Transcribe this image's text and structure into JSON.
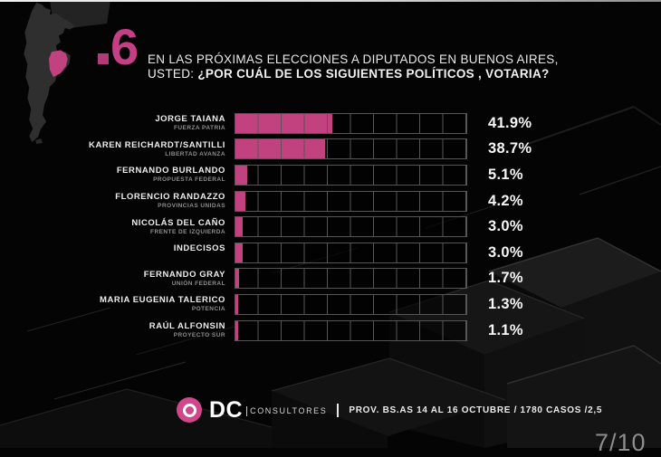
{
  "slide": {
    "question_number": "6",
    "title_line1": "EN LAS PRÓXIMAS ELECCIONES A DIPUTADOS EN BUENOS AIRES,",
    "title_line2_prefix": "USTED: ",
    "title_line2_bold": "¿POR CUÁL DE LOS SIGUIENTES POLÍTICOS , VOTARIA?",
    "page_number": "7/10"
  },
  "chart_data": {
    "type": "bar",
    "orientation": "horizontal",
    "value_axis": {
      "min": 0,
      "max": 100,
      "gridline_step": 10,
      "unit": "%"
    },
    "bar_color": "#c2417f",
    "legend": "none",
    "rows": [
      {
        "name": "JORGE TAIANA",
        "party": "FUERZA PATRIA",
        "value": 41.9,
        "label": "41.9%"
      },
      {
        "name": "KAREN REICHARDT/SANTILLI",
        "party": "LIBERTAD AVANZA",
        "value": 38.7,
        "label": "38.7%"
      },
      {
        "name": "FERNANDO BURLANDO",
        "party": "PROPUESTA FEDERAL",
        "value": 5.1,
        "label": "5.1%"
      },
      {
        "name": "FLORENCIO RANDAZZO",
        "party": "PROVINCIAS UNIDAS",
        "value": 4.2,
        "label": "4.2%"
      },
      {
        "name": "NICOLÁS DEL CAÑO",
        "party": "FRENTE DE IZQUIERDA",
        "value": 3.0,
        "label": "3.0%"
      },
      {
        "name": "INDECISOS",
        "party": "",
        "value": 3.0,
        "label": "3.0%"
      },
      {
        "name": "FERNANDO GRAY",
        "party": "UNIÓN FEDERAL",
        "value": 1.7,
        "label": "1.7%"
      },
      {
        "name": "MARIA EUGENIA TALERICO",
        "party": "POTENCIA",
        "value": 1.3,
        "label": "1.3%"
      },
      {
        "name": "RAÚL ALFONSIN",
        "party": "PROYECTO SUR",
        "value": 1.1,
        "label": "1.1%"
      }
    ]
  },
  "map": {
    "country": "Argentina",
    "highlighted_region": "Buenos Aires"
  },
  "footer": {
    "logo_text": "DC",
    "logo_subtext": "CONSULTORES",
    "source_text": "PROV. BS.AS 14 AL 16 OCTUBRE / 1780 CASOS /2,5"
  },
  "colors": {
    "accent_pink": "#c2417f",
    "logo_pink": "#d2478c",
    "background": "#040404",
    "gridline": "#565656"
  }
}
